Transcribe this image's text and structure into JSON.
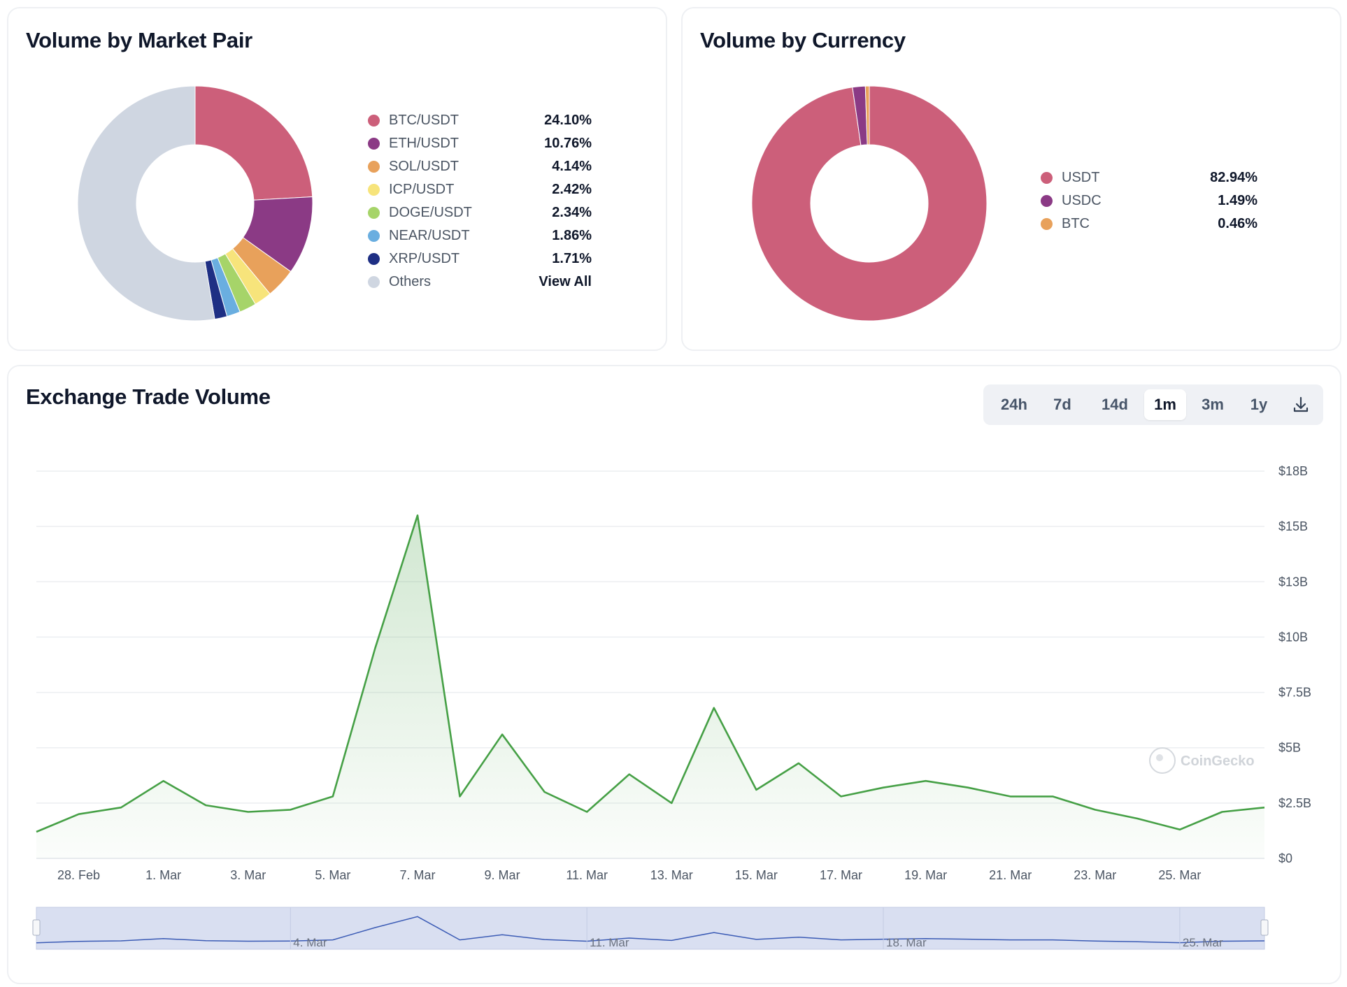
{
  "colors": {
    "line": "#46a046",
    "grid": "#eceef1",
    "navigator_fill": "#d9dff1",
    "navigator_line": "#3b5bb5"
  },
  "volume_by_pair": {
    "title": "Volume by Market Pair",
    "view_all_label": "View All"
  },
  "volume_by_currency": {
    "title": "Volume by Currency"
  },
  "exchange_volume": {
    "title": "Exchange Trade Volume",
    "ranges": [
      "24h",
      "7d",
      "14d",
      "1m",
      "3m",
      "1y"
    ],
    "active_range": "1m",
    "watermark": "CoinGecko"
  },
  "chart_data": [
    {
      "type": "pie",
      "title": "Volume by Market Pair",
      "style": "donut",
      "legend_position": "right",
      "slices": [
        {
          "label": "BTC/USDT",
          "value": 24.1,
          "display": "24.10%",
          "color": "#cc5f7a"
        },
        {
          "label": "ETH/USDT",
          "value": 10.76,
          "display": "10.76%",
          "color": "#8b3a85"
        },
        {
          "label": "SOL/USDT",
          "value": 4.14,
          "display": "4.14%",
          "color": "#e8a15b"
        },
        {
          "label": "ICP/USDT",
          "value": 2.42,
          "display": "2.42%",
          "color": "#f7e47b"
        },
        {
          "label": "DOGE/USDT",
          "value": 2.34,
          "display": "2.34%",
          "color": "#a6d469"
        },
        {
          "label": "NEAR/USDT",
          "value": 1.86,
          "display": "1.86%",
          "color": "#6aaee0"
        },
        {
          "label": "XRP/USDT",
          "value": 1.71,
          "display": "1.71%",
          "color": "#1e2f84"
        },
        {
          "label": "Others",
          "value": 52.67,
          "display": "View All",
          "color": "#cfd6e1"
        }
      ]
    },
    {
      "type": "pie",
      "title": "Volume by Currency",
      "style": "donut",
      "legend_position": "right",
      "slices": [
        {
          "label": "USDT",
          "value": 82.94,
          "display": "82.94%",
          "color": "#cc5f7a"
        },
        {
          "label": "USDC",
          "value": 1.49,
          "display": "1.49%",
          "color": "#8b3a85"
        },
        {
          "label": "BTC",
          "value": 0.46,
          "display": "0.46%",
          "color": "#e8a15b"
        }
      ]
    },
    {
      "type": "area",
      "title": "Exchange Trade Volume",
      "x_unit": "day",
      "x": [
        "27. Feb",
        "28. Feb",
        "29. Feb",
        "1. Mar",
        "2. Mar",
        "3. Mar",
        "4. Mar",
        "5. Mar",
        "6. Mar",
        "7. Mar",
        "8. Mar",
        "9. Mar",
        "10. Mar",
        "11. Mar",
        "12. Mar",
        "13. Mar",
        "14. Mar",
        "15. Mar",
        "16. Mar",
        "17. Mar",
        "18. Mar",
        "19. Mar",
        "20. Mar",
        "21. Mar",
        "22. Mar",
        "23. Mar",
        "24. Mar",
        "25. Mar",
        "26. Mar",
        "27. Mar"
      ],
      "values": [
        1.2,
        2.0,
        2.3,
        3.5,
        2.4,
        2.1,
        2.2,
        2.8,
        9.5,
        15.5,
        2.8,
        5.6,
        3.0,
        2.1,
        3.8,
        2.5,
        6.8,
        3.1,
        4.3,
        2.8,
        3.2,
        3.5,
        3.2,
        2.8,
        2.8,
        2.2,
        1.8,
        1.3,
        2.1,
        2.3
      ],
      "series_name": "Volume",
      "yticks": [
        {
          "value": 0,
          "label": "$0"
        },
        {
          "value": 2.5,
          "label": "$2.5B"
        },
        {
          "value": 5,
          "label": "$5B"
        },
        {
          "value": 7.5,
          "label": "$7.5B"
        },
        {
          "value": 10,
          "label": "$10B"
        },
        {
          "value": 12.5,
          "label": "$13B"
        },
        {
          "value": 15,
          "label": "$15B"
        },
        {
          "value": 17.5,
          "label": "$18B"
        }
      ],
      "xticks": [
        "28. Feb",
        "1. Mar",
        "3. Mar",
        "5. Mar",
        "7. Mar",
        "9. Mar",
        "11. Mar",
        "13. Mar",
        "15. Mar",
        "17. Mar",
        "19. Mar",
        "21. Mar",
        "23. Mar",
        "25. Mar"
      ],
      "navigator_ticks": [
        "4. Mar",
        "11. Mar",
        "18. Mar",
        "25. Mar"
      ],
      "ylim": [
        0,
        17.5
      ],
      "ylabel": "",
      "xlabel": "",
      "grid": true
    }
  ]
}
